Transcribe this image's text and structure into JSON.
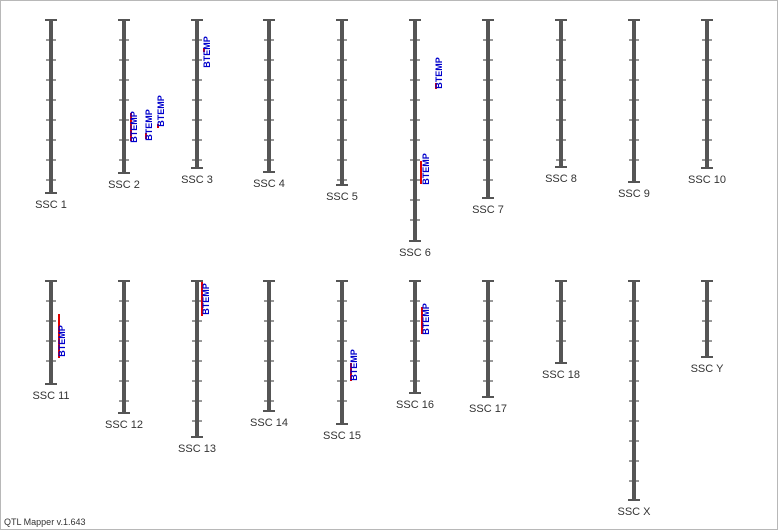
{
  "app": {
    "version_label": "QTL Mapper v.1.643"
  },
  "colors": {
    "chromosome": "#555555",
    "qtl_bar": "#e00000",
    "qtl_text": "#0000cc",
    "label": "#333333"
  },
  "chromosomes": [
    {
      "name": "SSC 1",
      "qtls": []
    },
    {
      "name": "SSC 2",
      "qtls": [
        {
          "trait": "BTEMP"
        },
        {
          "trait": "BTEMP"
        },
        {
          "trait": "BTEMP"
        }
      ]
    },
    {
      "name": "SSC 3",
      "qtls": [
        {
          "trait": "BTEMP"
        }
      ]
    },
    {
      "name": "SSC 4",
      "qtls": []
    },
    {
      "name": "SSC 5",
      "qtls": []
    },
    {
      "name": "SSC 6",
      "qtls": [
        {
          "trait": "BTEMP"
        },
        {
          "trait": "BTEMP"
        }
      ]
    },
    {
      "name": "SSC 7",
      "qtls": []
    },
    {
      "name": "SSC 8",
      "qtls": []
    },
    {
      "name": "SSC 9",
      "qtls": []
    },
    {
      "name": "SSC 10",
      "qtls": []
    },
    {
      "name": "SSC 11",
      "qtls": [
        {
          "trait": "BTEMP"
        }
      ]
    },
    {
      "name": "SSC 12",
      "qtls": []
    },
    {
      "name": "SSC 13",
      "qtls": [
        {
          "trait": "BTEMP"
        }
      ]
    },
    {
      "name": "SSC 14",
      "qtls": []
    },
    {
      "name": "SSC 15",
      "qtls": [
        {
          "trait": "BTEMP"
        }
      ]
    },
    {
      "name": "SSC 16",
      "qtls": [
        {
          "trait": "BTEMP"
        }
      ]
    },
    {
      "name": "SSC 17",
      "qtls": []
    },
    {
      "name": "SSC 18",
      "qtls": []
    },
    {
      "name": "SSC X",
      "qtls": []
    },
    {
      "name": "SSC Y",
      "qtls": []
    }
  ]
}
